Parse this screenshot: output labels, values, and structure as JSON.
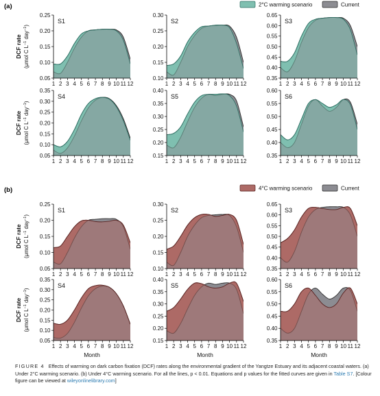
{
  "colors": {
    "current": "#8c8c92",
    "current_stroke": "#2a2a2a",
    "warm2": "#7fbfb0",
    "warm2_stroke": "#2f6e63",
    "warm4": "#ad6a66",
    "warm4_stroke": "#5a2422",
    "axis": "#000000"
  },
  "panel_labels": [
    "(a)",
    "(b)"
  ],
  "legends": [
    {
      "warm_label": "2°C warming scenario",
      "current_label": "Current"
    },
    {
      "warm_label": "4°C warming scenario",
      "current_label": "Current"
    }
  ],
  "ylabel_line1": "DCF rate",
  "ylabel_line2_pre": "(μmol C L",
  "ylabel_sup1": "−1",
  "ylabel_mid": " day",
  "ylabel_sup2": "−1",
  "ylabel_close": ")",
  "xlabel": "Month",
  "caption": {
    "fig_label": "FIGURE 4",
    "text": "Effects of warming on dark carbon fixation (DCF) rates along the environmental gradient of the Yangtze Estuary and its adjacent coastal waters. (a) Under 2°C warming scenario. (b) Under 4°C warming scenario. For all the lines, p < 0.01. Equations and p values for the fitted curves are given in",
    "table_ref": "Table S7",
    "text2": ". [Colour figure can be viewed at",
    "link": "wileyonlinelibrary.com",
    "text3": "]"
  },
  "chart_data": [
    {
      "panel": "(a)",
      "scenario": "2°C warming scenario",
      "type": "area",
      "x": [
        1,
        2,
        3,
        4,
        5,
        6,
        7,
        8,
        9,
        10,
        11,
        12
      ],
      "subplots": [
        {
          "site": "S1",
          "ylim": [
            0.05,
            0.25
          ],
          "yticks": [
            0.05,
            0.1,
            0.15,
            0.2,
            0.25
          ],
          "series": [
            {
              "name": "Current",
              "values": [
                0.07,
                0.065,
                0.1,
                0.145,
                0.18,
                0.2,
                0.203,
                0.205,
                0.205,
                0.203,
                0.18,
                0.11
              ]
            },
            {
              "name": "2°C warming scenario",
              "values": [
                0.095,
                0.095,
                0.12,
                0.16,
                0.19,
                0.2,
                0.203,
                0.205,
                0.205,
                0.2,
                0.17,
                0.095
              ]
            }
          ]
        },
        {
          "site": "S2",
          "ylim": [
            0.1,
            0.3
          ],
          "yticks": [
            0.1,
            0.15,
            0.2,
            0.25,
            0.3
          ],
          "series": [
            {
              "name": "Current",
              "values": [
                0.12,
                0.11,
                0.15,
                0.2,
                0.235,
                0.258,
                0.265,
                0.267,
                0.268,
                0.265,
                0.23,
                0.15
              ]
            },
            {
              "name": "2°C warming scenario",
              "values": [
                0.14,
                0.145,
                0.17,
                0.215,
                0.245,
                0.263,
                0.265,
                0.268,
                0.268,
                0.26,
                0.21,
                0.13
              ]
            }
          ]
        },
        {
          "site": "S3",
          "ylim": [
            0.35,
            0.65
          ],
          "yticks": [
            0.35,
            0.4,
            0.45,
            0.5,
            0.55,
            0.6,
            0.65
          ],
          "series": [
            {
              "name": "Current",
              "values": [
                0.4,
                0.38,
                0.43,
                0.52,
                0.59,
                0.625,
                0.635,
                0.638,
                0.638,
                0.635,
                0.6,
                0.5
              ]
            },
            {
              "name": "2°C warming scenario",
              "values": [
                0.43,
                0.43,
                0.47,
                0.55,
                0.61,
                0.63,
                0.635,
                0.638,
                0.638,
                0.63,
                0.58,
                0.46
              ]
            }
          ]
        },
        {
          "site": "S4",
          "ylim": [
            0.05,
            0.35
          ],
          "yticks": [
            0.05,
            0.1,
            0.15,
            0.2,
            0.25,
            0.3,
            0.35
          ],
          "series": [
            {
              "name": "Current",
              "values": [
                0.075,
                0.06,
                0.085,
                0.14,
                0.21,
                0.27,
                0.305,
                0.318,
                0.312,
                0.28,
                0.22,
                0.13
              ]
            },
            {
              "name": "2°C warming scenario",
              "values": [
                0.1,
                0.09,
                0.115,
                0.17,
                0.24,
                0.29,
                0.312,
                0.318,
                0.31,
                0.275,
                0.21,
                0.12
              ]
            }
          ]
        },
        {
          "site": "S5",
          "ylim": [
            0.15,
            0.4
          ],
          "yticks": [
            0.15,
            0.2,
            0.25,
            0.3,
            0.35,
            0.4
          ],
          "series": [
            {
              "name": "Current",
              "values": [
                0.19,
                0.18,
                0.22,
                0.28,
                0.335,
                0.37,
                0.385,
                0.38,
                0.385,
                0.385,
                0.36,
                0.26
              ]
            },
            {
              "name": "2°C warming scenario",
              "values": [
                0.23,
                0.235,
                0.26,
                0.31,
                0.355,
                0.38,
                0.385,
                0.385,
                0.387,
                0.38,
                0.34,
                0.24
              ]
            }
          ]
        },
        {
          "site": "S6",
          "ylim": [
            0.35,
            0.6
          ],
          "yticks": [
            0.35,
            0.4,
            0.45,
            0.5,
            0.55,
            0.6
          ],
          "series": [
            {
              "name": "Current",
              "values": [
                0.4,
                0.38,
                0.4,
                0.47,
                0.54,
                0.565,
                0.54,
                0.52,
                0.535,
                0.565,
                0.555,
                0.47
              ]
            },
            {
              "name": "2°C warming scenario",
              "values": [
                0.43,
                0.41,
                0.43,
                0.49,
                0.55,
                0.565,
                0.55,
                0.535,
                0.545,
                0.565,
                0.545,
                0.45
              ]
            }
          ]
        }
      ]
    },
    {
      "panel": "(b)",
      "scenario": "4°C warming scenario",
      "type": "area",
      "x": [
        1,
        2,
        3,
        4,
        5,
        6,
        7,
        8,
        9,
        10,
        11,
        12
      ],
      "subplots": [
        {
          "site": "S1",
          "ylim": [
            0.05,
            0.25
          ],
          "yticks": [
            0.05,
            0.1,
            0.15,
            0.2,
            0.25
          ],
          "series": [
            {
              "name": "Current",
              "values": [
                0.07,
                0.065,
                0.1,
                0.145,
                0.18,
                0.2,
                0.203,
                0.205,
                0.205,
                0.203,
                0.18,
                0.11
              ]
            },
            {
              "name": "4°C warming scenario",
              "values": [
                0.115,
                0.12,
                0.15,
                0.18,
                0.198,
                0.2,
                0.196,
                0.195,
                0.197,
                0.2,
                0.185,
                0.13
              ]
            }
          ]
        },
        {
          "site": "S2",
          "ylim": [
            0.1,
            0.3
          ],
          "yticks": [
            0.1,
            0.15,
            0.2,
            0.25,
            0.3
          ],
          "series": [
            {
              "name": "Current",
              "values": [
                0.12,
                0.11,
                0.15,
                0.2,
                0.235,
                0.258,
                0.265,
                0.267,
                0.268,
                0.265,
                0.23,
                0.15
              ]
            },
            {
              "name": "4°C warming scenario",
              "values": [
                0.16,
                0.17,
                0.2,
                0.235,
                0.258,
                0.268,
                0.268,
                0.262,
                0.265,
                0.268,
                0.25,
                0.175
              ]
            }
          ]
        },
        {
          "site": "S3",
          "ylim": [
            0.35,
            0.65
          ],
          "yticks": [
            0.35,
            0.4,
            0.45,
            0.5,
            0.55,
            0.6,
            0.65
          ],
          "series": [
            {
              "name": "Current",
              "values": [
                0.4,
                0.38,
                0.43,
                0.52,
                0.59,
                0.625,
                0.635,
                0.638,
                0.638,
                0.635,
                0.6,
                0.5
              ]
            },
            {
              "name": "4°C warming scenario",
              "values": [
                0.47,
                0.49,
                0.53,
                0.59,
                0.63,
                0.635,
                0.63,
                0.625,
                0.625,
                0.635,
                0.63,
                0.55
              ]
            }
          ]
        },
        {
          "site": "S4",
          "ylim": [
            0.05,
            0.35
          ],
          "yticks": [
            0.05,
            0.1,
            0.15,
            0.2,
            0.25,
            0.3,
            0.35
          ],
          "series": [
            {
              "name": "Current",
              "values": [
                0.065,
                0.062,
                0.085,
                0.14,
                0.21,
                0.27,
                0.305,
                0.318,
                0.312,
                0.28,
                0.22,
                0.13
              ]
            },
            {
              "name": "4°C warming scenario",
              "values": [
                0.135,
                0.13,
                0.15,
                0.2,
                0.26,
                0.305,
                0.32,
                0.322,
                0.312,
                0.28,
                0.22,
                0.13
              ]
            }
          ]
        },
        {
          "site": "S5",
          "ylim": [
            0.15,
            0.4
          ],
          "yticks": [
            0.15,
            0.2,
            0.25,
            0.3,
            0.35,
            0.4
          ],
          "series": [
            {
              "name": "Current",
              "values": [
                0.19,
                0.18,
                0.22,
                0.28,
                0.335,
                0.37,
                0.385,
                0.38,
                0.385,
                0.385,
                0.36,
                0.26
              ]
            },
            {
              "name": "4°C warming scenario",
              "values": [
                0.27,
                0.285,
                0.32,
                0.36,
                0.385,
                0.383,
                0.37,
                0.365,
                0.37,
                0.385,
                0.385,
                0.31
              ]
            }
          ]
        },
        {
          "site": "S6",
          "ylim": [
            0.35,
            0.6
          ],
          "yticks": [
            0.35,
            0.4,
            0.45,
            0.5,
            0.55,
            0.6
          ],
          "series": [
            {
              "name": "Current",
              "values": [
                0.4,
                0.38,
                0.4,
                0.47,
                0.54,
                0.565,
                0.54,
                0.52,
                0.535,
                0.565,
                0.555,
                0.47
              ]
            },
            {
              "name": "4°C warming scenario",
              "values": [
                0.47,
                0.47,
                0.5,
                0.55,
                0.565,
                0.535,
                0.5,
                0.485,
                0.5,
                0.545,
                0.565,
                0.5
              ]
            }
          ]
        }
      ]
    }
  ]
}
